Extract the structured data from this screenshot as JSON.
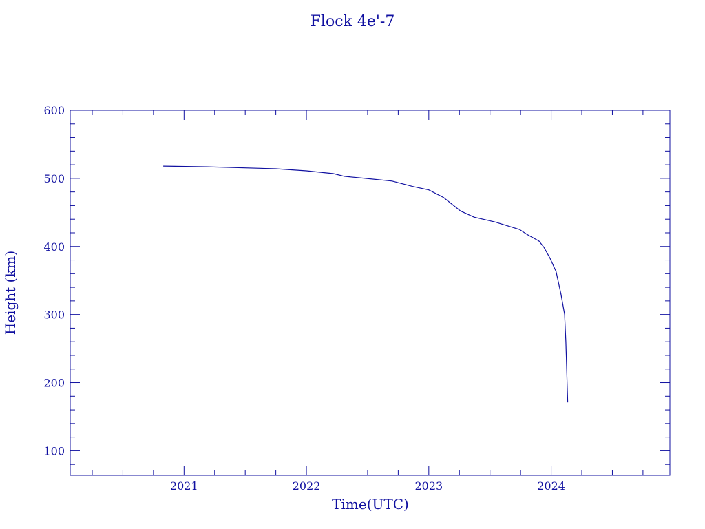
{
  "colors": {
    "axis": "#1010a0",
    "line": "#1010a0",
    "background": "#ffffff"
  },
  "chart_data": {
    "type": "line",
    "title": "Flock 4e'-7",
    "xlabel": "Time(UTC)",
    "ylabel": "Height (km)",
    "xlim": [
      2020.07,
      2024.97
    ],
    "ylim": [
      64,
      600
    ],
    "xticks": [
      2021,
      2022,
      2023,
      2024
    ],
    "xtick_labels": [
      "2021",
      "2022",
      "2023",
      "2024"
    ],
    "yticks": [
      100,
      200,
      300,
      400,
      500,
      600
    ],
    "ytick_labels": [
      "100",
      "200",
      "300",
      "400",
      "500",
      "600"
    ],
    "x_minor_step": 0.25,
    "y_minor_step": 20,
    "grid": false,
    "series": [
      {
        "x": [
          2020.83,
          2021.19,
          2021.75,
          2022.0,
          2022.22,
          2022.31,
          2022.48,
          2022.7,
          2022.87,
          2023.0,
          2023.12,
          2023.26,
          2023.37,
          2023.54,
          2023.74,
          2023.8,
          2023.9,
          2023.94,
          2023.99,
          2024.04,
          2024.08,
          2024.11,
          2024.12,
          2024.13,
          2024.135
        ],
        "y": [
          518,
          517,
          514,
          511,
          507,
          503,
          500,
          496,
          488,
          483,
          472,
          452,
          443,
          436,
          425,
          418,
          408,
          399,
          383,
          363,
          330,
          300,
          260,
          200,
          171
        ]
      }
    ]
  }
}
